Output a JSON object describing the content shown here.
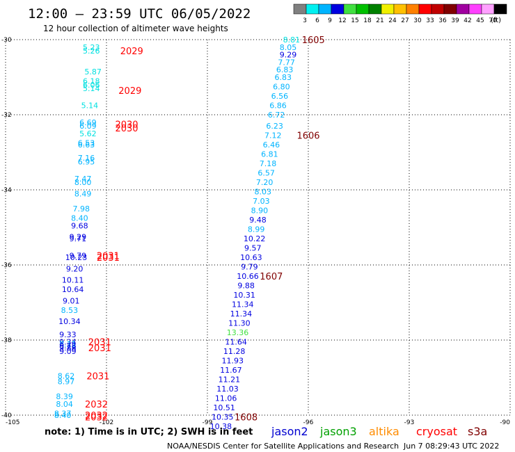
{
  "header": {
    "title": "12:00 – 23:59 UTC 06/05/2022",
    "subtitle": "12 hour collection of altimeter wave heights"
  },
  "colorbar": {
    "unit": "(ft)",
    "ticks": [
      "3",
      "6",
      "9",
      "12",
      "15",
      "18",
      "21",
      "24",
      "27",
      "30",
      "33",
      "36",
      "39",
      "42",
      "45",
      "70"
    ],
    "colors": [
      "#808080",
      "#00f0f0",
      "#00b4ff",
      "#0000e0",
      "#40e040",
      "#00c000",
      "#008000",
      "#f0f000",
      "#ffc000",
      "#ff8000",
      "#ff0000",
      "#c00000",
      "#800000",
      "#a000a0",
      "#ff40ff",
      "#ffa0ff",
      "#000000"
    ]
  },
  "footer": {
    "note": "note: 1) Time is in UTC; 2) SWH is in feet",
    "credit": "NOAA/NESDIS Center for Satellite Applications and Research",
    "timestamp": "Jun  7 08:29:43 UTC 2022",
    "satellites": [
      {
        "name": "jason2",
        "color": "#0000d0"
      },
      {
        "name": "jason3",
        "color": "#00a000"
      },
      {
        "name": "altika",
        "color": "#ff8c00"
      },
      {
        "name": "cryosat",
        "color": "#ff0000"
      },
      {
        "name": "s3a",
        "color": "#800000"
      }
    ]
  },
  "chart_data": {
    "type": "scatter",
    "xlim": [
      -105,
      -90
    ],
    "ylim": [
      -40,
      -30
    ],
    "xticks": [
      "-105",
      "-102",
      "-99",
      "-96",
      "-93",
      "-90"
    ],
    "yticks": [
      "-30",
      "-32",
      "-34",
      "-36",
      "-38",
      "-40"
    ],
    "grid": true,
    "tracks": [
      {
        "x": -102.45,
        "y": -30.2,
        "v": "5.23",
        "c": "#00e0e0"
      },
      {
        "x": -102.45,
        "y": -30.3,
        "v": "5.26",
        "c": "#00e0e0"
      },
      {
        "x": -102.4,
        "y": -30.85,
        "v": "5.87",
        "c": "#00e0e0"
      },
      {
        "x": -102.45,
        "y": -31.1,
        "v": "6.18",
        "c": "#00e0e0"
      },
      {
        "x": -102.45,
        "y": -31.2,
        "v": "6.06",
        "c": "#00e0e0"
      },
      {
        "x": -102.45,
        "y": -31.3,
        "v": "5.14",
        "c": "#00e0e0"
      },
      {
        "x": -102.5,
        "y": -31.75,
        "v": "5.14",
        "c": "#00e0e0"
      },
      {
        "x": -102.55,
        "y": -32.2,
        "v": "6.69",
        "c": "#00b4ff"
      },
      {
        "x": -102.55,
        "y": -32.3,
        "v": "6.09",
        "c": "#00b4ff"
      },
      {
        "x": -102.55,
        "y": -32.5,
        "v": "5.62",
        "c": "#00e0e0"
      },
      {
        "x": -102.6,
        "y": -32.75,
        "v": "6.53",
        "c": "#00b4ff"
      },
      {
        "x": -102.6,
        "y": -32.8,
        "v": "6.63",
        "c": "#00b4ff"
      },
      {
        "x": -102.6,
        "y": -33.15,
        "v": "7.16",
        "c": "#00b4ff"
      },
      {
        "x": -102.6,
        "y": -33.25,
        "v": "6.95",
        "c": "#00b4ff"
      },
      {
        "x": -102.7,
        "y": -33.7,
        "v": "7.47",
        "c": "#00b4ff"
      },
      {
        "x": -102.7,
        "y": -33.8,
        "v": "8.00",
        "c": "#00b4ff"
      },
      {
        "x": -102.7,
        "y": -34.1,
        "v": "8.49",
        "c": "#00b4ff"
      },
      {
        "x": -102.75,
        "y": -34.5,
        "v": "7.98",
        "c": "#00b4ff"
      },
      {
        "x": -102.8,
        "y": -34.75,
        "v": "8.40",
        "c": "#00b4ff"
      },
      {
        "x": -102.8,
        "y": -34.95,
        "v": "9.68",
        "c": "#0000e0"
      },
      {
        "x": -102.85,
        "y": -35.25,
        "v": "9.29",
        "c": "#0000e0"
      },
      {
        "x": -102.85,
        "y": -35.3,
        "v": "9.71",
        "c": "#0000e0"
      },
      {
        "x": -102.85,
        "y": -35.75,
        "v": "9.79",
        "c": "#0000e0"
      },
      {
        "x": -102.9,
        "y": -35.8,
        "v": "10.23",
        "c": "#0000e0"
      },
      {
        "x": -102.95,
        "y": -36.1,
        "v": "9.20",
        "c": "#0000e0"
      },
      {
        "x": -103.0,
        "y": -36.4,
        "v": "10.11",
        "c": "#0000e0"
      },
      {
        "x": -103.0,
        "y": -36.65,
        "v": "10.64",
        "c": "#0000e0"
      },
      {
        "x": -103.05,
        "y": -36.95,
        "v": "9.01",
        "c": "#0000e0"
      },
      {
        "x": -103.1,
        "y": -37.2,
        "v": "8.53",
        "c": "#00b4ff"
      },
      {
        "x": -103.1,
        "y": -37.5,
        "v": "10.34",
        "c": "#0000e0"
      },
      {
        "x": -103.15,
        "y": -37.85,
        "v": "9.33",
        "c": "#0000e0"
      },
      {
        "x": -103.15,
        "y": -38.05,
        "v": "9.34",
        "c": "#0000e0"
      },
      {
        "x": -103.15,
        "y": -38.1,
        "v": "8.11",
        "c": "#00b4ff"
      },
      {
        "x": -103.15,
        "y": -38.15,
        "v": "9.78",
        "c": "#0000e0"
      },
      {
        "x": -103.15,
        "y": -38.2,
        "v": "9.88",
        "c": "#0000e0"
      },
      {
        "x": -103.15,
        "y": -38.3,
        "v": "9.09",
        "c": "#0000e0"
      },
      {
        "x": -103.2,
        "y": -38.95,
        "v": "8.62",
        "c": "#00b4ff"
      },
      {
        "x": -103.2,
        "y": -39.1,
        "v": "8.97",
        "c": "#00b4ff"
      },
      {
        "x": -103.25,
        "y": -39.5,
        "v": "8.39",
        "c": "#00b4ff"
      },
      {
        "x": -103.25,
        "y": -39.7,
        "v": "8.04",
        "c": "#00b4ff"
      },
      {
        "x": -103.3,
        "y": -39.95,
        "v": "8.37",
        "c": "#00b4ff"
      },
      {
        "x": -103.3,
        "y": -40.0,
        "v": "8.40",
        "c": "#00b4ff"
      },
      {
        "x": -96.5,
        "y": -30.0,
        "v": "8.81",
        "c": "#00e0e0"
      },
      {
        "x": -96.6,
        "y": -30.2,
        "v": "8.05",
        "c": "#00b4ff"
      },
      {
        "x": -96.6,
        "y": -30.4,
        "v": "9.29",
        "c": "#0000e0"
      },
      {
        "x": -96.65,
        "y": -30.6,
        "v": "7.77",
        "c": "#00b4ff"
      },
      {
        "x": -96.7,
        "y": -30.8,
        "v": "6.83",
        "c": "#00b4ff"
      },
      {
        "x": -96.75,
        "y": -31.0,
        "v": "6.83",
        "c": "#00b4ff"
      },
      {
        "x": -96.8,
        "y": -31.25,
        "v": "6.80",
        "c": "#00b4ff"
      },
      {
        "x": -96.85,
        "y": -31.5,
        "v": "6.56",
        "c": "#00b4ff"
      },
      {
        "x": -96.9,
        "y": -31.75,
        "v": "6.86",
        "c": "#00b4ff"
      },
      {
        "x": -96.95,
        "y": -32.0,
        "v": "6.72",
        "c": "#00b4ff"
      },
      {
        "x": -97.0,
        "y": -32.3,
        "v": "6.23",
        "c": "#00b4ff"
      },
      {
        "x": -97.05,
        "y": -32.55,
        "v": "7.12",
        "c": "#00b4ff"
      },
      {
        "x": -97.1,
        "y": -32.8,
        "v": "6.46",
        "c": "#00b4ff"
      },
      {
        "x": -97.15,
        "y": -33.05,
        "v": "6.81",
        "c": "#00b4ff"
      },
      {
        "x": -97.2,
        "y": -33.3,
        "v": "7.18",
        "c": "#00b4ff"
      },
      {
        "x": -97.25,
        "y": -33.55,
        "v": "6.57",
        "c": "#00b4ff"
      },
      {
        "x": -97.3,
        "y": -33.8,
        "v": "7.20",
        "c": "#00b4ff"
      },
      {
        "x": -97.35,
        "y": -34.05,
        "v": "8.03",
        "c": "#00b4ff"
      },
      {
        "x": -97.4,
        "y": -34.3,
        "v": "7.03",
        "c": "#00b4ff"
      },
      {
        "x": -97.45,
        "y": -34.55,
        "v": "8.90",
        "c": "#00b4ff"
      },
      {
        "x": -97.5,
        "y": -34.8,
        "v": "9.48",
        "c": "#0000e0"
      },
      {
        "x": -97.55,
        "y": -35.05,
        "v": "8.99",
        "c": "#00b4ff"
      },
      {
        "x": -97.6,
        "y": -35.3,
        "v": "10.22",
        "c": "#0000e0"
      },
      {
        "x": -97.65,
        "y": -35.55,
        "v": "9.57",
        "c": "#0000e0"
      },
      {
        "x": -97.7,
        "y": -35.8,
        "v": "10.63",
        "c": "#0000e0"
      },
      {
        "x": -97.75,
        "y": -36.05,
        "v": "9.79",
        "c": "#0000e0"
      },
      {
        "x": -97.8,
        "y": -36.3,
        "v": "10.66",
        "c": "#0000e0"
      },
      {
        "x": -97.85,
        "y": -36.55,
        "v": "9.88",
        "c": "#0000e0"
      },
      {
        "x": -97.9,
        "y": -36.8,
        "v": "10.31",
        "c": "#0000e0"
      },
      {
        "x": -97.95,
        "y": -37.05,
        "v": "11.34",
        "c": "#0000e0"
      },
      {
        "x": -98.0,
        "y": -37.3,
        "v": "11.34",
        "c": "#0000e0"
      },
      {
        "x": -98.05,
        "y": -37.55,
        "v": "11.30",
        "c": "#0000e0"
      },
      {
        "x": -98.1,
        "y": -37.8,
        "v": "13.36",
        "c": "#40e040"
      },
      {
        "x": -98.15,
        "y": -38.05,
        "v": "11.64",
        "c": "#0000e0"
      },
      {
        "x": -98.2,
        "y": -38.3,
        "v": "11.28",
        "c": "#0000e0"
      },
      {
        "x": -98.25,
        "y": -38.55,
        "v": "11.93",
        "c": "#0000e0"
      },
      {
        "x": -98.3,
        "y": -38.8,
        "v": "11.67",
        "c": "#0000e0"
      },
      {
        "x": -98.35,
        "y": -39.05,
        "v": "11.21",
        "c": "#0000e0"
      },
      {
        "x": -98.4,
        "y": -39.3,
        "v": "11.03",
        "c": "#0000e0"
      },
      {
        "x": -98.45,
        "y": -39.55,
        "v": "11.06",
        "c": "#0000e0"
      },
      {
        "x": -98.5,
        "y": -39.8,
        "v": "10.51",
        "c": "#0000e0"
      },
      {
        "x": -98.55,
        "y": -40.05,
        "v": "10.35",
        "c": "#0000e0"
      },
      {
        "x": -98.6,
        "y": -40.3,
        "v": "10.38",
        "c": "#0000e0"
      }
    ],
    "times": [
      {
        "x": -101.25,
        "y": -30.3,
        "v": "2029",
        "c": "#ff0000"
      },
      {
        "x": -101.3,
        "y": -31.35,
        "v": "2029",
        "c": "#ff0000"
      },
      {
        "x": -101.4,
        "y": -32.25,
        "v": "2030",
        "c": "#ff0000"
      },
      {
        "x": -101.4,
        "y": -32.35,
        "v": "2030",
        "c": "#ff0000"
      },
      {
        "x": -101.95,
        "y": -35.75,
        "v": "2031",
        "c": "#ff0000"
      },
      {
        "x": -101.95,
        "y": -35.8,
        "v": "2031",
        "c": "#ff0000"
      },
      {
        "x": -102.2,
        "y": -38.05,
        "v": "2031",
        "c": "#ff0000"
      },
      {
        "x": -102.2,
        "y": -38.2,
        "v": "2031",
        "c": "#ff0000"
      },
      {
        "x": -102.25,
        "y": -38.95,
        "v": "2031",
        "c": "#ff0000"
      },
      {
        "x": -102.3,
        "y": -39.7,
        "v": "2032",
        "c": "#ff0000"
      },
      {
        "x": -102.3,
        "y": -40.0,
        "v": "2032",
        "c": "#ff0000"
      },
      {
        "x": -102.3,
        "y": -40.05,
        "v": "2032",
        "c": "#ff0000"
      },
      {
        "x": -95.85,
        "y": -30.0,
        "v": "1605",
        "c": "#800000"
      },
      {
        "x": -96.0,
        "y": -32.55,
        "v": "1606",
        "c": "#800000"
      },
      {
        "x": -97.1,
        "y": -36.3,
        "v": "1607",
        "c": "#800000"
      },
      {
        "x": -97.85,
        "y": -40.05,
        "v": "1608",
        "c": "#800000"
      }
    ]
  }
}
